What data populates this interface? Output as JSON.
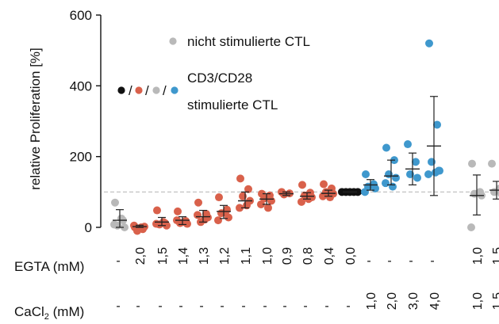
{
  "chart_data": {
    "type": "scatter",
    "ylabel": "relative Proliferation [%]",
    "ylim": [
      0,
      600
    ],
    "yticks": [
      0,
      200,
      400,
      600
    ],
    "reference_line": 100,
    "legend": {
      "items": [
        {
          "label": "nicht stimulierte CTL",
          "color": "#b9b9b9"
        },
        {
          "label_line1": "CD3/CD28",
          "label_line2": "stimulierte CTL",
          "colors": [
            "#111111",
            "#d9614b",
            "#b9b9b9",
            "#3f98cd"
          ]
        }
      ]
    },
    "row_labels": {
      "egta": "EGTA (mM)",
      "cacl2_main": "CaCl",
      "cacl2_sub": "2",
      "cacl2_unit": " (mM)"
    },
    "colors": {
      "grey": "#b9b9b9",
      "red": "#d9614b",
      "black": "#111111",
      "blue": "#3f98cd",
      "errorbar": "#222222",
      "refline": "#bbbbbb"
    },
    "groups": [
      {
        "egta": "-",
        "cacl2": "-",
        "color": "grey",
        "mean": 20,
        "sd": [
          0,
          50
        ],
        "points": [
          70,
          20,
          5,
          0,
          8,
          25
        ]
      },
      {
        "egta": "2,0",
        "cacl2": "-",
        "color": "red",
        "mean": 2,
        "sd": [
          0,
          6
        ],
        "points": [
          0,
          -5,
          -10,
          2,
          5,
          0
        ]
      },
      {
        "egta": "1,5",
        "cacl2": "-",
        "color": "red",
        "mean": 15,
        "sd": [
          5,
          28
        ],
        "points": [
          48,
          12,
          8,
          5,
          10,
          15
        ]
      },
      {
        "egta": "1,4",
        "cacl2": "-",
        "color": "red",
        "mean": 20,
        "sd": [
          8,
          30
        ],
        "points": [
          45,
          18,
          12,
          10,
          20,
          15
        ]
      },
      {
        "egta": "1,3",
        "cacl2": "-",
        "color": "red",
        "mean": 30,
        "sd": [
          15,
          48
        ],
        "points": [
          70,
          38,
          15,
          28,
          35,
          22
        ]
      },
      {
        "egta": "1,2",
        "cacl2": "-",
        "color": "red",
        "mean": 45,
        "sd": [
          25,
          62
        ],
        "points": [
          85,
          50,
          40,
          28,
          20,
          42
        ]
      },
      {
        "egta": "1,1",
        "cacl2": "-",
        "color": "red",
        "mean": 75,
        "sd": [
          55,
          100
        ],
        "points": [
          138,
          108,
          88,
          75,
          55,
          62
        ]
      },
      {
        "egta": "1,0",
        "cacl2": "-",
        "color": "red",
        "mean": 80,
        "sd": [
          65,
          95
        ],
        "points": [
          95,
          90,
          82,
          75,
          65,
          55
        ]
      },
      {
        "egta": "0,9",
        "cacl2": "-",
        "color": "red",
        "mean": 95,
        "sd": [
          90,
          100
        ],
        "points": [
          100,
          96,
          93
        ]
      },
      {
        "egta": "0,8",
        "cacl2": "-",
        "color": "red",
        "mean": 88,
        "sd": [
          80,
          98
        ],
        "points": [
          120,
          98,
          90,
          85,
          72,
          80
        ]
      },
      {
        "egta": "0,4",
        "cacl2": "-",
        "color": "red",
        "mean": 96,
        "sd": [
          88,
          105
        ],
        "points": [
          122,
          110,
          100,
          95,
          88,
          85
        ]
      },
      {
        "egta": "0,0",
        "cacl2": "-",
        "color": "black",
        "mean": 100,
        "sd": [
          100,
          100
        ],
        "points": [
          100,
          100,
          100,
          100,
          100
        ]
      },
      {
        "egta": "-",
        "cacl2": "1,0",
        "color": "blue",
        "mean": 120,
        "sd": [
          105,
          135
        ],
        "points": [
          150,
          122,
          115,
          110,
          100
        ]
      },
      {
        "egta": "-",
        "cacl2": "2,0",
        "color": "blue",
        "mean": 145,
        "sd": [
          120,
          190
        ],
        "points": [
          225,
          190,
          150,
          140,
          125,
          115
        ]
      },
      {
        "egta": "-",
        "cacl2": "3,0",
        "color": "blue",
        "mean": 165,
        "sd": [
          120,
          210
        ],
        "points": [
          235,
          185,
          150,
          140
        ]
      },
      {
        "egta": "-",
        "cacl2": "4,0",
        "color": "blue",
        "mean": 230,
        "sd": [
          90,
          370
        ],
        "points": [
          520,
          290,
          185,
          160,
          150,
          155,
          160
        ]
      },
      {
        "egta": "1,0",
        "cacl2": "1,0",
        "color": "grey",
        "mean": 90,
        "sd": [
          35,
          148
        ],
        "points": [
          180,
          100,
          95,
          90,
          0
        ]
      },
      {
        "egta": "1,5",
        "cacl2": "1,5",
        "color": "grey",
        "mean": 105,
        "sd": [
          80,
          130
        ],
        "points": [
          180,
          110,
          100,
          95
        ]
      }
    ]
  }
}
